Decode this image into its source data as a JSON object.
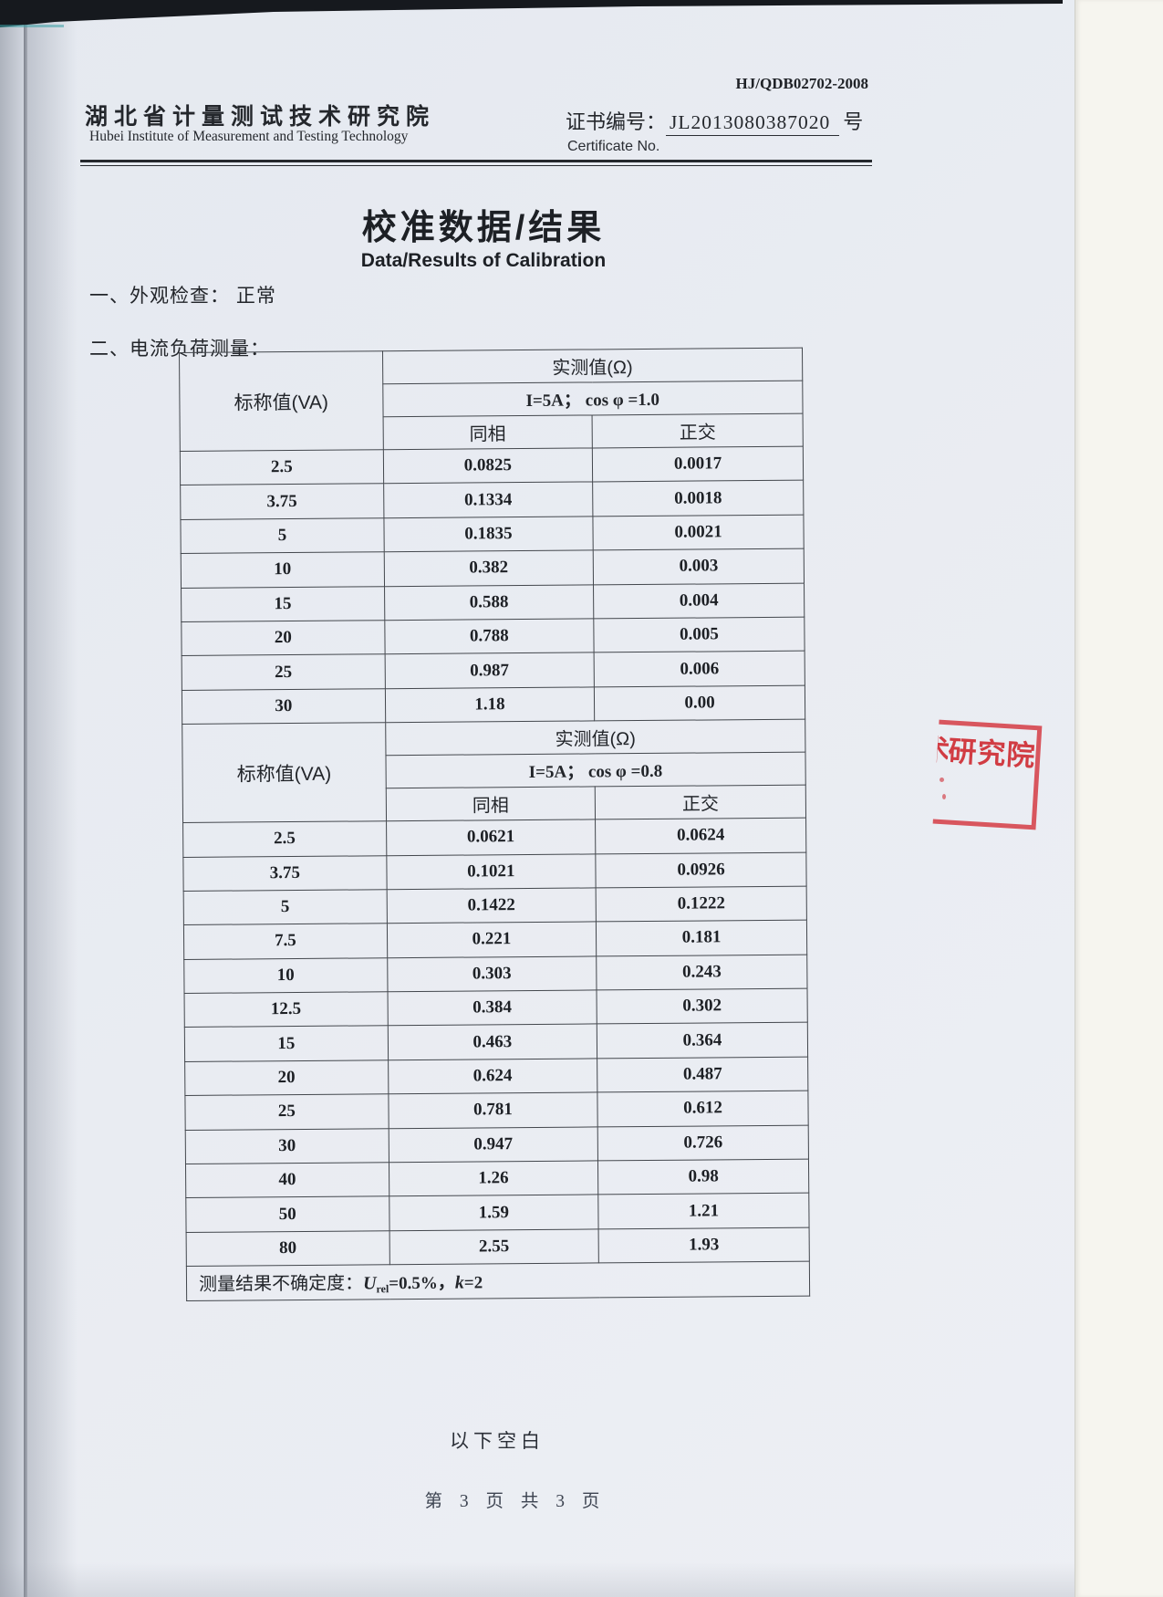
{
  "header": {
    "doc_code": "HJ/QDB02702-2008",
    "institute_cn": "湖北省计量测试技术研究院",
    "institute_en": "Hubei Institute of Measurement and Testing Technology",
    "cert_label_cn": "证书编号：",
    "cert_no": "JL2013080387020",
    "cert_no_suffix": "号",
    "cert_label_en": "Certificate No."
  },
  "title": {
    "cn": "校准数据/结果",
    "en": "Data/Results of Calibration"
  },
  "sections": {
    "visual_check": "一、外观检查： 正常",
    "load_measurement": "二、电流负荷测量："
  },
  "table1": {
    "nominal_header": "标称值(VA)",
    "measured_header": "实测值(Ω)",
    "condition": "I=5A；  cos φ =1.0",
    "col_inphase": "同相",
    "col_quadrature": "正交",
    "rows": [
      [
        "2.5",
        "0.0825",
        "0.0017"
      ],
      [
        "3.75",
        "0.1334",
        "0.0018"
      ],
      [
        "5",
        "0.1835",
        "0.0021"
      ],
      [
        "10",
        "0.382",
        "0.003"
      ],
      [
        "15",
        "0.588",
        "0.004"
      ],
      [
        "20",
        "0.788",
        "0.005"
      ],
      [
        "25",
        "0.987",
        "0.006"
      ],
      [
        "30",
        "1.18",
        "0.00"
      ]
    ]
  },
  "table2": {
    "nominal_header": "标称值(VA)",
    "measured_header": "实测值(Ω)",
    "condition": "I=5A；  cos φ =0.8",
    "col_inphase": "同相",
    "col_quadrature": "正交",
    "rows": [
      [
        "2.5",
        "0.0621",
        "0.0624"
      ],
      [
        "3.75",
        "0.1021",
        "0.0926"
      ],
      [
        "5",
        "0.1422",
        "0.1222"
      ],
      [
        "7.5",
        "0.221",
        "0.181"
      ],
      [
        "10",
        "0.303",
        "0.243"
      ],
      [
        "12.5",
        "0.384",
        "0.302"
      ],
      [
        "15",
        "0.463",
        "0.364"
      ],
      [
        "20",
        "0.624",
        "0.487"
      ],
      [
        "25",
        "0.781",
        "0.612"
      ],
      [
        "30",
        "0.947",
        "0.726"
      ],
      [
        "40",
        "1.26",
        "0.98"
      ],
      [
        "50",
        "1.59",
        "1.21"
      ],
      [
        "80",
        "2.55",
        "1.93"
      ]
    ]
  },
  "uncertainty": {
    "prefix": "测量结果不确定度：",
    "u_symbol": "U",
    "u_sub": "rel",
    "mid": "=0.5%，",
    "k_symbol": "k",
    "suffix": "=2"
  },
  "footer": {
    "below_blank": "以下空白",
    "page_number": "第 3 页 共 3 页"
  },
  "stamp": {
    "partial_char": "术",
    "text": "研究院",
    "color": "#ce2c34"
  }
}
